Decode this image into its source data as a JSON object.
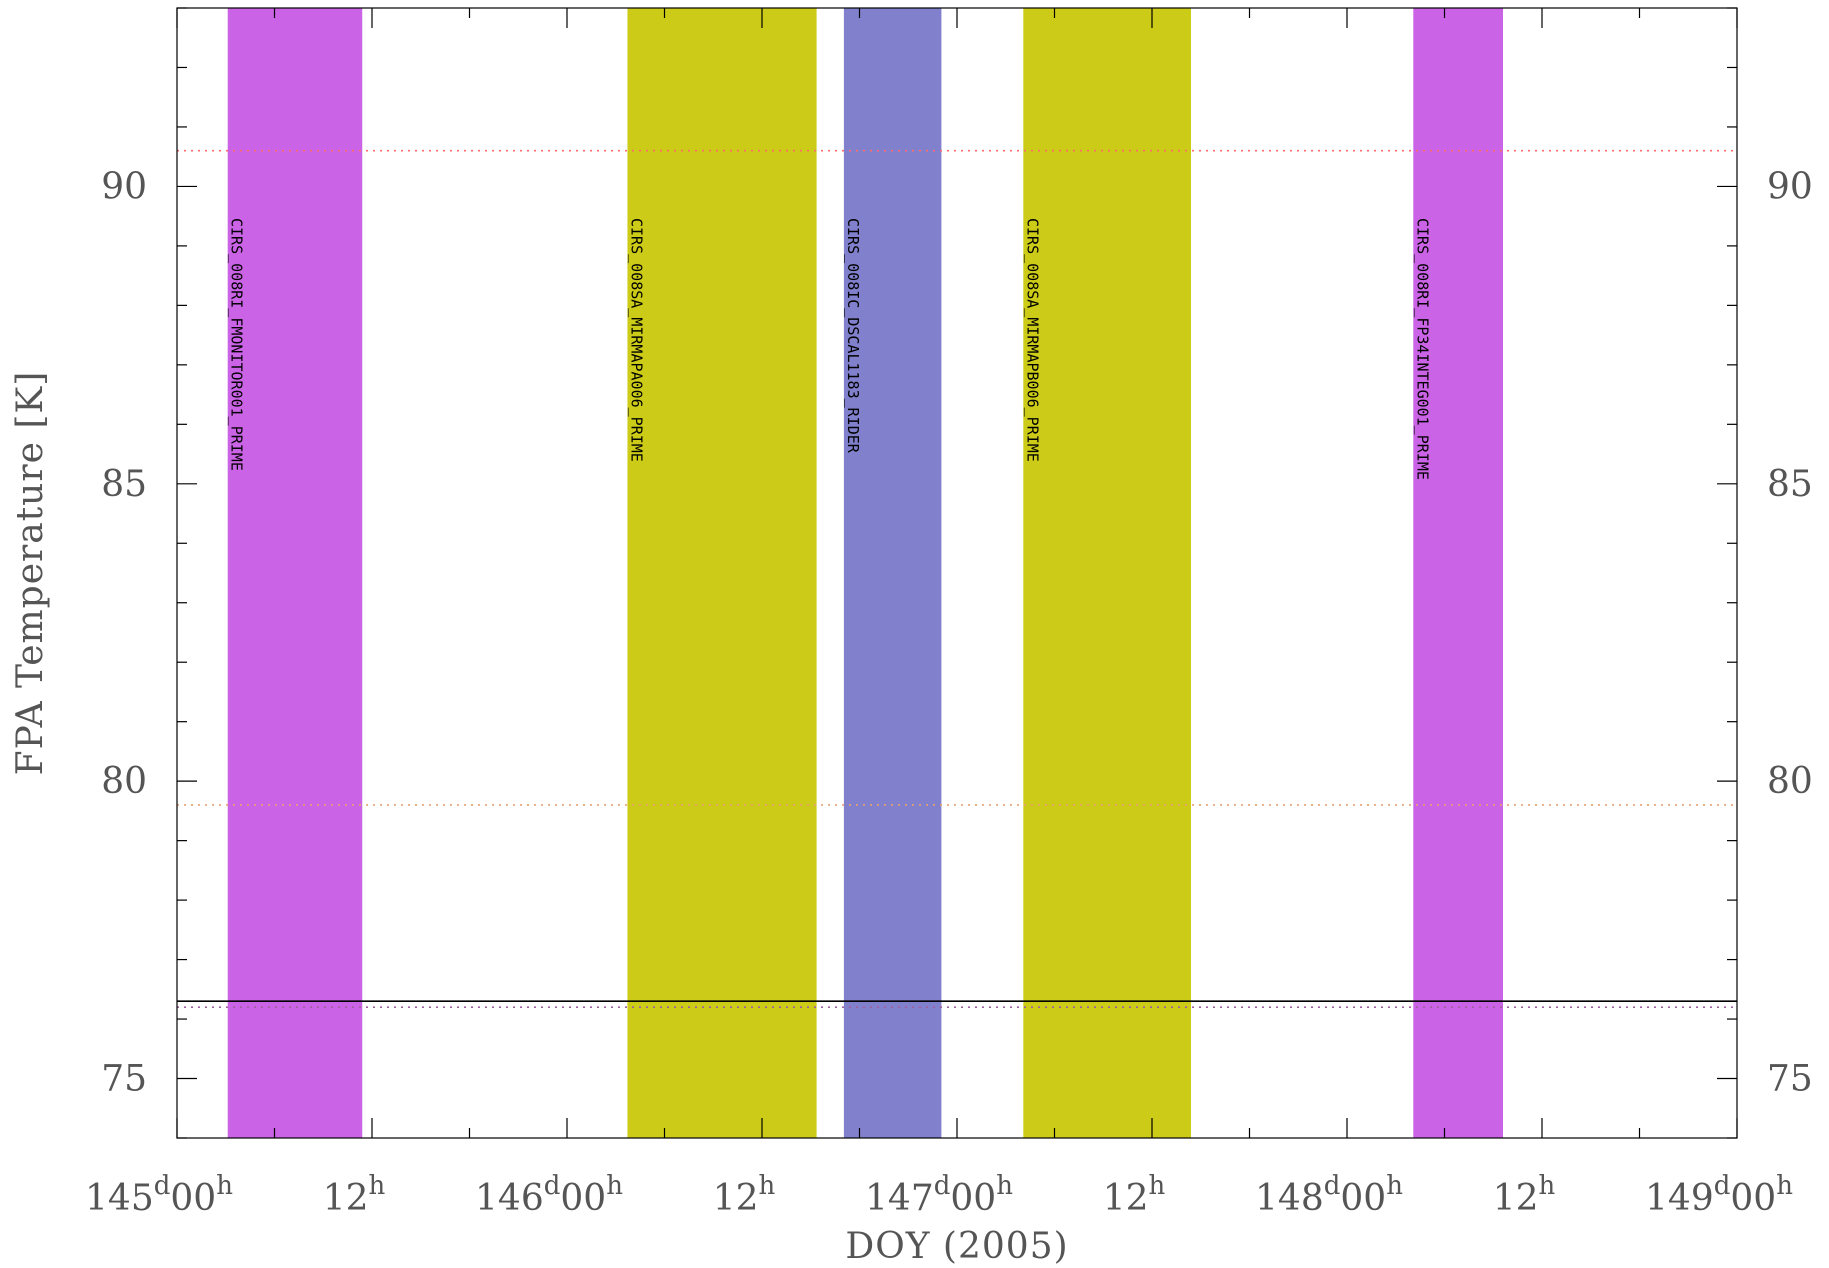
{
  "chart_data": {
    "type": "line",
    "title": "",
    "xlabel": "DOY (2005)",
    "ylabel": "FPA Temperature [K]",
    "xlim": [
      145.0,
      149.0
    ],
    "ylim": [
      74.0,
      93.0
    ],
    "x_unit": "day of year (fractional)",
    "yticks": [
      {
        "value": 75,
        "label": "75"
      },
      {
        "value": 80,
        "label": "80"
      },
      {
        "value": 85,
        "label": "85"
      },
      {
        "value": 90,
        "label": "90"
      }
    ],
    "xticks": [
      {
        "value": 145.0,
        "day": "145",
        "day_unit": "d",
        "hour": "00",
        "hour_unit": "h"
      },
      {
        "value": 145.5,
        "day": "",
        "day_unit": "",
        "hour": "12",
        "hour_unit": "h"
      },
      {
        "value": 146.0,
        "day": "146",
        "day_unit": "d",
        "hour": "00",
        "hour_unit": "h"
      },
      {
        "value": 146.5,
        "day": "",
        "day_unit": "",
        "hour": "12",
        "hour_unit": "h"
      },
      {
        "value": 147.0,
        "day": "147",
        "day_unit": "d",
        "hour": "00",
        "hour_unit": "h"
      },
      {
        "value": 147.5,
        "day": "",
        "day_unit": "",
        "hour": "12",
        "hour_unit": "h"
      },
      {
        "value": 148.0,
        "day": "148",
        "day_unit": "d",
        "hour": "00",
        "hour_unit": "h"
      },
      {
        "value": 148.5,
        "day": "",
        "day_unit": "",
        "hour": "12",
        "hour_unit": "h"
      },
      {
        "value": 149.0,
        "day": "149",
        "day_unit": "d",
        "hour": "00",
        "hour_unit": "h"
      }
    ],
    "bands": [
      {
        "label": "CIRS_008RI_FMONITOR001_PRIME",
        "x_start": 145.13,
        "x_end": 145.475,
        "color": "#cb63e6"
      },
      {
        "label": "CIRS_008SA_MIRMAPA006_PRIME",
        "x_start": 146.155,
        "x_end": 146.64,
        "color": "#cccc18"
      },
      {
        "label": "CIRS_008IC_DSCAL1183_RIDER",
        "x_start": 146.71,
        "x_end": 146.96,
        "color": "#8080cc"
      },
      {
        "label": "CIRS_008SA_MIRMAPB006_PRIME",
        "x_start": 147.17,
        "x_end": 147.6,
        "color": "#cccc18"
      },
      {
        "label": "CIRS_008RI_FP34INTEG001_PRIME",
        "x_start": 148.17,
        "x_end": 148.4,
        "color": "#cb63e6"
      }
    ],
    "series": [
      {
        "values": [
          [
            145.0,
            76.3
          ],
          [
            149.0,
            76.3
          ]
        ],
        "color": "#000000",
        "style": "solid"
      }
    ],
    "reference_lines": [
      {
        "y": 90.6,
        "color": "#ff6a6a",
        "style": "dotted"
      },
      {
        "y": 79.6,
        "color": "#e8a070",
        "style": "dotted"
      },
      {
        "y": 76.2,
        "color": "#a060a0",
        "style": "dotted"
      }
    ],
    "grid": false,
    "mirror_y_axis_right": true
  }
}
